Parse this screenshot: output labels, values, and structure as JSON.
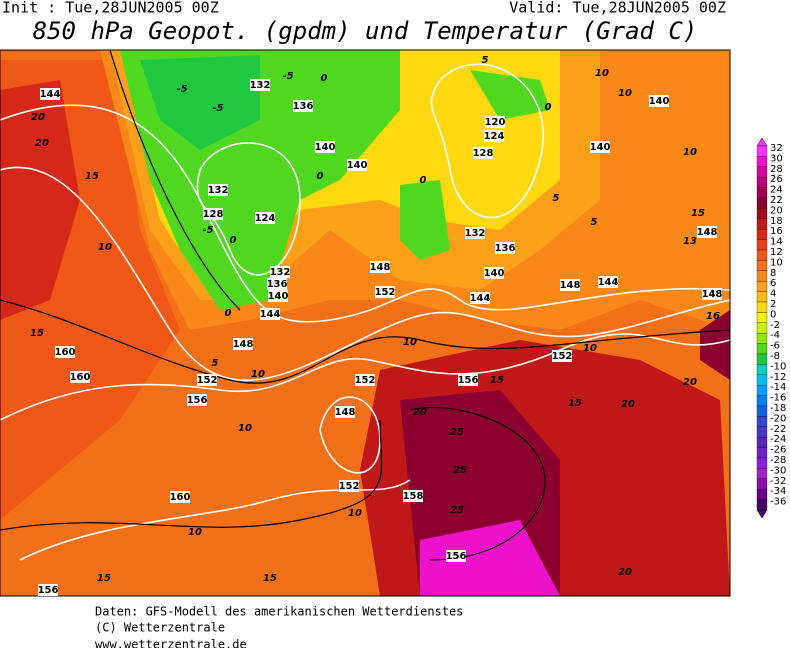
{
  "header": {
    "init": "Init : Tue,28JUN2005 00Z",
    "valid": "Valid: Tue,28JUN2005 00Z",
    "title": "850 hPa Geopot. (gpdm) und Temperatur (Grad C)"
  },
  "colorbar": {
    "labels": [
      32,
      30,
      28,
      26,
      24,
      22,
      20,
      18,
      16,
      14,
      12,
      10,
      8,
      6,
      4,
      2,
      0,
      -2,
      -4,
      -6,
      -8,
      -10,
      -12,
      -14,
      -16,
      -18,
      -20,
      -22,
      -24,
      -26,
      -28,
      -30,
      -32,
      -34,
      -36
    ],
    "colors": [
      "#ff33ff",
      "#ee11cc",
      "#d6009e",
      "#bb0077",
      "#a0004e",
      "#8c0030",
      "#a40a1e",
      "#c01818",
      "#d62818",
      "#e84018",
      "#f05818",
      "#f47018",
      "#f88818",
      "#fba018",
      "#fdbc10",
      "#ffd810",
      "#f4f000",
      "#c8f000",
      "#90e800",
      "#50d820",
      "#20c840",
      "#00d0c0",
      "#00c0e8",
      "#00a0ff",
      "#0080f0",
      "#1060e0",
      "#3048d0",
      "#4838c0",
      "#5a28b8",
      "#7024c8",
      "#8a20d8",
      "#a020c8",
      "#8810a8",
      "#680088",
      "#480068"
    ]
  },
  "map": {
    "contour_labels": [
      "144",
      "20",
      "20",
      "15",
      "10",
      "15",
      "160",
      "160",
      "156",
      "10",
      "160",
      "10",
      "15",
      "156",
      "15",
      "10",
      "152",
      "148",
      "152",
      "10",
      "152",
      "5",
      "148",
      "144",
      "0",
      "140",
      "136",
      "132",
      "124",
      "128",
      "132",
      "-5",
      "0",
      "-5",
      "-5",
      "132",
      "-5",
      "136",
      "0",
      "140",
      "140",
      "0",
      "148",
      "152",
      "10",
      "0",
      "120",
      "124",
      "128",
      "132",
      "136",
      "140",
      "144",
      "148",
      "152",
      "10",
      "156",
      "15",
      "20",
      "25",
      "25",
      "25",
      "158",
      "156",
      "15",
      "20",
      "20",
      "20",
      "144",
      "148",
      "148",
      "15",
      "13",
      "16",
      "140",
      "140",
      "10",
      "10",
      "10",
      "5",
      "5",
      "5",
      "0"
    ]
  },
  "footer": {
    "line1": "Daten: GFS-Modell des amerikanischen Wetterdienstes",
    "line2": "(C) Wetterzentrale",
    "line3": "www.wetterzentrale.de"
  }
}
